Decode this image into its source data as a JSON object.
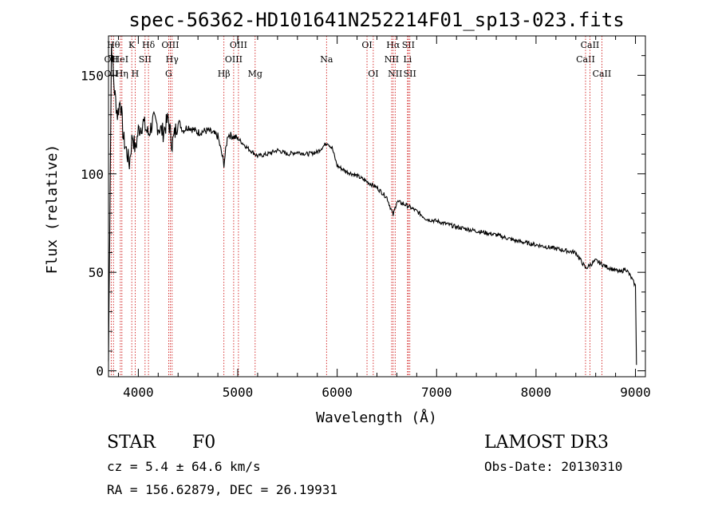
{
  "chart_data": {
    "type": "line",
    "title": "spec-56362-HD101641N252214F01_sp13-023.fits",
    "xlabel": "Wavelength (Å)",
    "ylabel": "Flux (relative)",
    "xlim": [
      3700,
      9100
    ],
    "ylim": [
      -3,
      170
    ],
    "xticks": [
      4000,
      5000,
      6000,
      7000,
      8000,
      9000
    ],
    "yticks": [
      0,
      50,
      100,
      150
    ],
    "grid": false,
    "series": [
      {
        "name": "spectrum",
        "x": [
          3700,
          3730,
          3760,
          3790,
          3820,
          3850,
          3880,
          3910,
          3940,
          3970,
          4000,
          4050,
          4100,
          4150,
          4200,
          4250,
          4300,
          4340,
          4400,
          4450,
          4500,
          4600,
          4700,
          4800,
          4861,
          4900,
          5000,
          5100,
          5200,
          5300,
          5400,
          5500,
          5600,
          5700,
          5800,
          5900,
          5950,
          6000,
          6100,
          6200,
          6300,
          6400,
          6500,
          6563,
          6600,
          6700,
          6800,
          6900,
          7000,
          7200,
          7400,
          7600,
          7800,
          8000,
          8200,
          8400,
          8500,
          8600,
          8700,
          8800,
          8850,
          8900,
          8950,
          9000,
          9010
        ],
        "values": [
          5,
          166,
          142,
          130,
          138,
          118,
          112,
          105,
          120,
          112,
          122,
          126,
          120,
          127,
          124,
          121,
          128,
          115,
          127,
          122,
          124,
          121,
          122,
          119,
          105,
          120,
          118,
          113,
          109,
          110,
          112,
          110,
          111,
          110,
          111,
          116,
          113,
          104,
          101,
          99,
          96,
          93,
          88,
          79,
          86,
          84,
          81,
          77,
          76,
          73,
          71,
          69,
          66,
          64,
          62,
          60,
          52,
          56,
          53,
          51,
          50,
          52,
          48,
          43,
          3
        ]
      }
    ]
  },
  "lines": [
    {
      "label": "OII",
      "x": 3727,
      "row": 1
    },
    {
      "label": "OII",
      "x": 3727,
      "row": 2
    },
    {
      "label": "Hθ",
      "x": 3750,
      "row": 0
    },
    {
      "label": "HeI",
      "x": 3819,
      "row": 1
    },
    {
      "label": "Hη",
      "x": 3835,
      "row": 2
    },
    {
      "label": "K",
      "x": 3934,
      "row": 0
    },
    {
      "label": "H",
      "x": 3968,
      "row": 2
    },
    {
      "label": "SII",
      "x": 4068,
      "row": 1
    },
    {
      "label": "Hδ",
      "x": 4102,
      "row": 0
    },
    {
      "label": "OIII",
      "x": 4321,
      "row": 0
    },
    {
      "label": "Hγ",
      "x": 4340,
      "row": 1
    },
    {
      "label": "G",
      "x": 4305,
      "row": 2
    },
    {
      "label": "Hβ",
      "x": 4861,
      "row": 2
    },
    {
      "label": "OIII",
      "x": 5007,
      "row": 0
    },
    {
      "label": "OIII",
      "x": 4959,
      "row": 1
    },
    {
      "label": "Mg",
      "x": 5175,
      "row": 2
    },
    {
      "label": "Na",
      "x": 5893,
      "row": 1
    },
    {
      "label": "OI",
      "x": 6300,
      "row": 0
    },
    {
      "label": "OI",
      "x": 6363,
      "row": 2
    },
    {
      "label": "Hα",
      "x": 6563,
      "row": 0
    },
    {
      "label": "NII",
      "x": 6548,
      "row": 1
    },
    {
      "label": "NII",
      "x": 6583,
      "row": 2
    },
    {
      "label": "SII",
      "x": 6716,
      "row": 0
    },
    {
      "label": "Li",
      "x": 6708,
      "row": 1
    },
    {
      "label": "SII",
      "x": 6731,
      "row": 2
    },
    {
      "label": "CaII",
      "x": 8498,
      "row": 1
    },
    {
      "label": "CaII",
      "x": 8542,
      "row": 0
    },
    {
      "label": "CaII",
      "x": 8662,
      "row": 2
    }
  ],
  "info": {
    "obj_class": "STAR",
    "subclass": "F0",
    "survey": "LAMOST DR3",
    "cz": "cz = 5.4 ± 64.6 km/s",
    "obs_date": "Obs-Date: 20130310",
    "coords": "RA = 156.62879, DEC =  26.19931"
  },
  "colors": {
    "line_marker": "#cc0000",
    "spectrum": "#000000",
    "axis": "#000000"
  }
}
